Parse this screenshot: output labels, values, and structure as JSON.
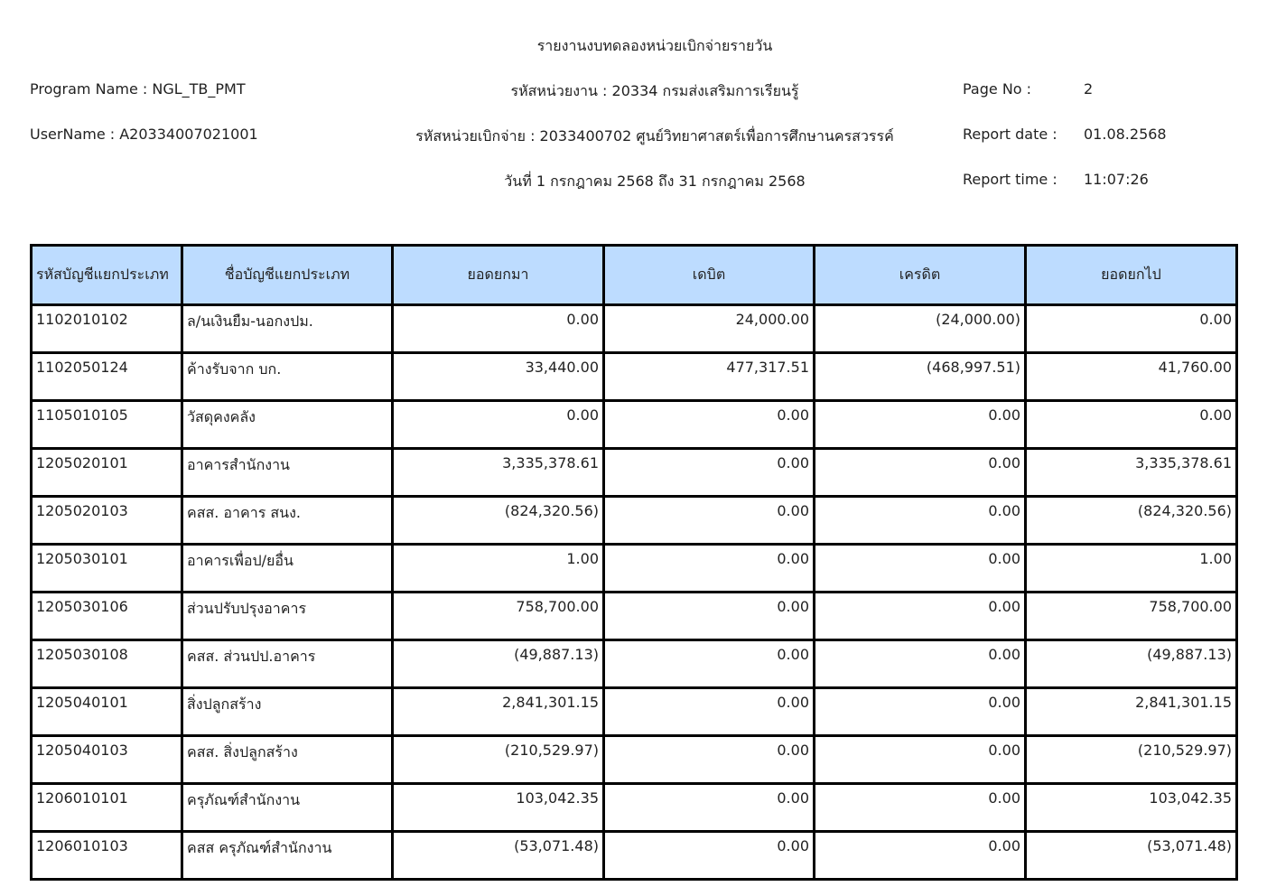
{
  "report": {
    "title": "รายงานงบทดลองหน่วยเบิกจ่ายรายวัน",
    "department": "รหัสหน่วยงาน : 20334 กรมส่งเสริมการเรียนรู้",
    "disbursing_unit": "รหัสหน่วยเบิกจ่าย : 2033400702 ศูนย์วิทยาศาสตร์เพื่อการศึกษานครสวรรค์",
    "period": "วันที่ 1 กรกฎาคม 2568 ถึง 31 กรกฎาคม 2568",
    "program_name": "Program Name : NGL_TB_PMT",
    "username": "UserName : A20334007021001",
    "page_no_label": "Page No :",
    "page_no": "2",
    "report_date_label": "Report date :",
    "report_date": "01.08.2568",
    "report_time_label": "Report time :",
    "report_time": "11:07:26"
  },
  "table": {
    "columns": [
      "รหัสบัญชีแยกประเภท",
      "ชื่อบัญชีแยกประเภท",
      "ยอดยกมา",
      "เดบิต",
      "เครดิต",
      "ยอดยกไป"
    ],
    "rows": [
      [
        "1102010102",
        "ล/นเงินยืม-นอกงปม.",
        "0.00",
        "24,000.00",
        "(24,000.00)",
        "0.00"
      ],
      [
        "1102050124",
        "ค้างรับจาก บก.",
        "33,440.00",
        "477,317.51",
        "(468,997.51)",
        "41,760.00"
      ],
      [
        "1105010105",
        "วัสดุคงคลัง",
        "0.00",
        "0.00",
        "0.00",
        "0.00"
      ],
      [
        "1205020101",
        "อาคารสำนักงาน",
        "3,335,378.61",
        "0.00",
        "0.00",
        "3,335,378.61"
      ],
      [
        "1205020103",
        "คสส. อาคาร สนง.",
        "(824,320.56)",
        "0.00",
        "0.00",
        "(824,320.56)"
      ],
      [
        "1205030101",
        "อาคารเพื่อป/ยอื่น",
        "1.00",
        "0.00",
        "0.00",
        "1.00"
      ],
      [
        "1205030106",
        "ส่วนปรับปรุงอาคาร",
        "758,700.00",
        "0.00",
        "0.00",
        "758,700.00"
      ],
      [
        "1205030108",
        "คสส. ส่วนปป.อาคาร",
        "(49,887.13)",
        "0.00",
        "0.00",
        "(49,887.13)"
      ],
      [
        "1205040101",
        "สิ่งปลูกสร้าง",
        "2,841,301.15",
        "0.00",
        "0.00",
        "2,841,301.15"
      ],
      [
        "1205040103",
        "คสส. สิ่งปลูกสร้าง",
        "(210,529.97)",
        "0.00",
        "0.00",
        "(210,529.97)"
      ],
      [
        "1206010101",
        "ครุภัณฑ์สำนักงาน",
        "103,042.35",
        "0.00",
        "0.00",
        "103,042.35"
      ],
      [
        "1206010103",
        "คสส ครุภัณฑ์สำนักงาน",
        "(53,071.48)",
        "0.00",
        "0.00",
        "(53,071.48)"
      ]
    ]
  }
}
